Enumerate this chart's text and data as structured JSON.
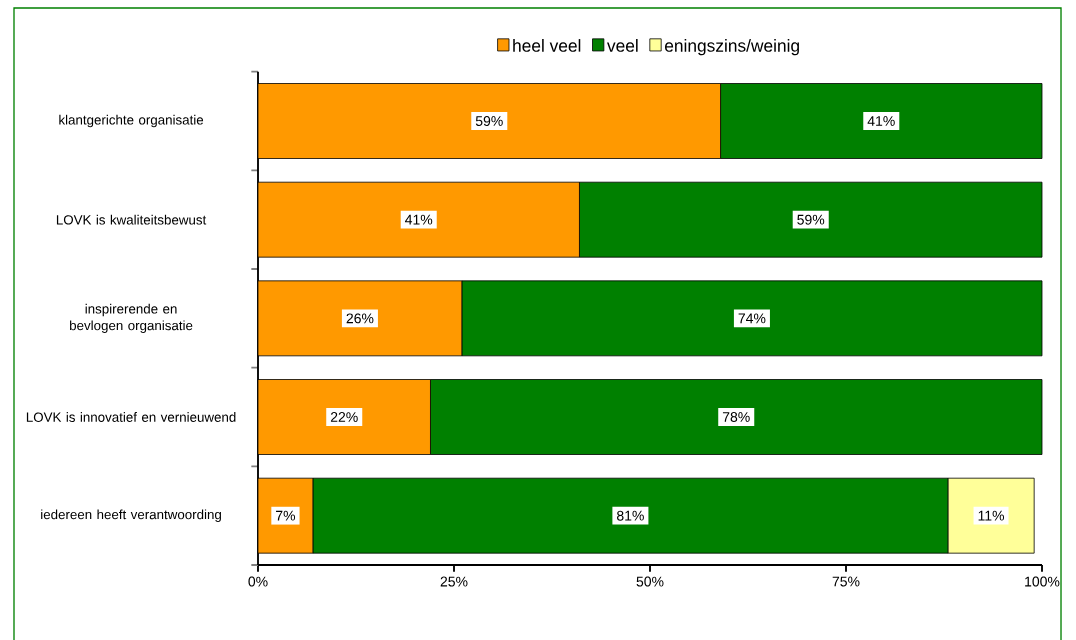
{
  "chart_data": {
    "type": "bar",
    "orientation": "horizontal",
    "stacked": true,
    "categories": [
      "klantgerichte organisatie",
      "LOVK is kwaliteitsbewust",
      "inspirerende en bevlogen organisatie",
      "LOVK is innovatief en vernieuwend",
      "iedereen heeft verantwoording"
    ],
    "series": [
      {
        "name": "heel veel",
        "color": "#ff9900",
        "values": [
          59,
          41,
          26,
          22,
          7
        ],
        "value_labels": [
          "59%",
          "41%",
          "26%",
          "22%",
          "7%"
        ]
      },
      {
        "name": "veel",
        "color": "#008000",
        "values": [
          41,
          59,
          74,
          78,
          81
        ],
        "value_labels": [
          "41%",
          "59%",
          "74%",
          "78%",
          "81%"
        ]
      },
      {
        "name": "eningszins/weinig",
        "color": "#ffff99",
        "values": [
          0,
          0,
          0,
          0,
          11
        ],
        "value_labels": [
          null,
          null,
          null,
          null,
          "11%"
        ]
      }
    ],
    "xlim": [
      0,
      100
    ],
    "xticks": [
      {
        "value": 0,
        "label": "0%"
      },
      {
        "value": 25,
        "label": "25%"
      },
      {
        "value": 50,
        "label": "50%"
      },
      {
        "value": 75,
        "label": "75%"
      },
      {
        "value": 100,
        "label": "100%"
      }
    ],
    "legend": "top",
    "grid": false
  }
}
